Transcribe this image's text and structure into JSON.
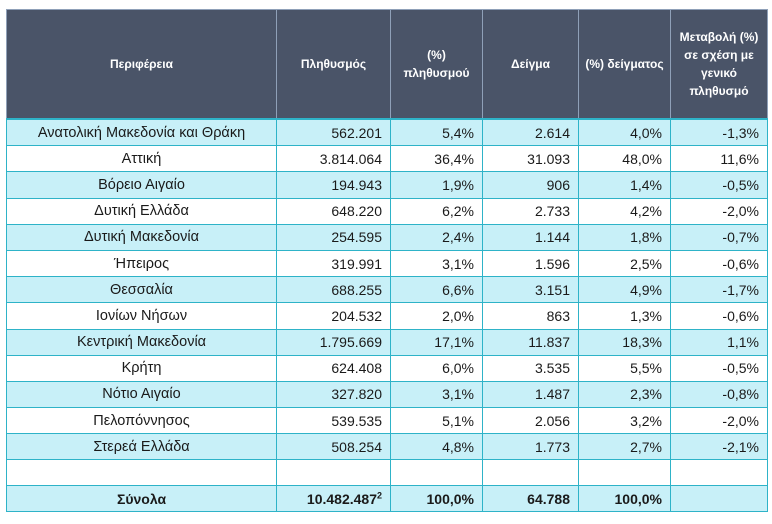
{
  "headers": {
    "region": "Περιφέρεια",
    "population": "Πληθυσμός",
    "pop_pct": "(%) πληθυσμού",
    "sample": "Δείγμα",
    "sample_pct": "(%) δείγματος",
    "change": "Μεταβολή (%) σε σχέση με γενικό πληθυσμό"
  },
  "rows": [
    {
      "region": "Ανατολική Μακεδονία και Θράκη",
      "population": "562.201",
      "pop_pct": "5,4%",
      "sample": "2.614",
      "sample_pct": "4,0%",
      "change": "-1,3%"
    },
    {
      "region": "Αττική",
      "population": "3.814.064",
      "pop_pct": "36,4%",
      "sample": "31.093",
      "sample_pct": "48,0%",
      "change": "11,6%"
    },
    {
      "region": "Βόρειο Αιγαίο",
      "population": "194.943",
      "pop_pct": "1,9%",
      "sample": "906",
      "sample_pct": "1,4%",
      "change": "-0,5%"
    },
    {
      "region": "Δυτική Ελλάδα",
      "population": "648.220",
      "pop_pct": "6,2%",
      "sample": "2.733",
      "sample_pct": "4,2%",
      "change": "-2,0%"
    },
    {
      "region": "Δυτική Μακεδονία",
      "population": "254.595",
      "pop_pct": "2,4%",
      "sample": "1.144",
      "sample_pct": "1,8%",
      "change": "-0,7%"
    },
    {
      "region": "Ήπειρος",
      "population": "319.991",
      "pop_pct": "3,1%",
      "sample": "1.596",
      "sample_pct": "2,5%",
      "change": "-0,6%"
    },
    {
      "region": "Θεσσαλία",
      "population": "688.255",
      "pop_pct": "6,6%",
      "sample": "3.151",
      "sample_pct": "4,9%",
      "change": "-1,7%"
    },
    {
      "region": "Ιονίων Νήσων",
      "population": "204.532",
      "pop_pct": "2,0%",
      "sample": "863",
      "sample_pct": "1,3%",
      "change": "-0,6%"
    },
    {
      "region": "Κεντρική Μακεδονία",
      "population": "1.795.669",
      "pop_pct": "17,1%",
      "sample": "11.837",
      "sample_pct": "18,3%",
      "change": "1,1%"
    },
    {
      "region": "Κρήτη",
      "population": "624.408",
      "pop_pct": "6,0%",
      "sample": "3.535",
      "sample_pct": "5,5%",
      "change": "-0,5%"
    },
    {
      "region": "Νότιο Αιγαίο",
      "population": "327.820",
      "pop_pct": "3,1%",
      "sample": "1.487",
      "sample_pct": "2,3%",
      "change": "-0,8%"
    },
    {
      "region": "Πελοπόννησος",
      "population": "539.535",
      "pop_pct": "5,1%",
      "sample": "2.056",
      "sample_pct": "3,2%",
      "change": "-2,0%"
    },
    {
      "region": "Στερεά Ελλάδα",
      "population": "508.254",
      "pop_pct": "4,8%",
      "sample": "1.773",
      "sample_pct": "2,7%",
      "change": "-2,1%"
    }
  ],
  "totals": {
    "label": "Σύνολα",
    "population": "10.482.487",
    "population_footnote": "2",
    "pop_pct": "100,0%",
    "sample": "64.788",
    "sample_pct": "100,0%",
    "change": ""
  },
  "colors": {
    "header_bg": "#4a5468",
    "accent": "#2eb3c8",
    "row_alt": "#c8f0f8"
  }
}
